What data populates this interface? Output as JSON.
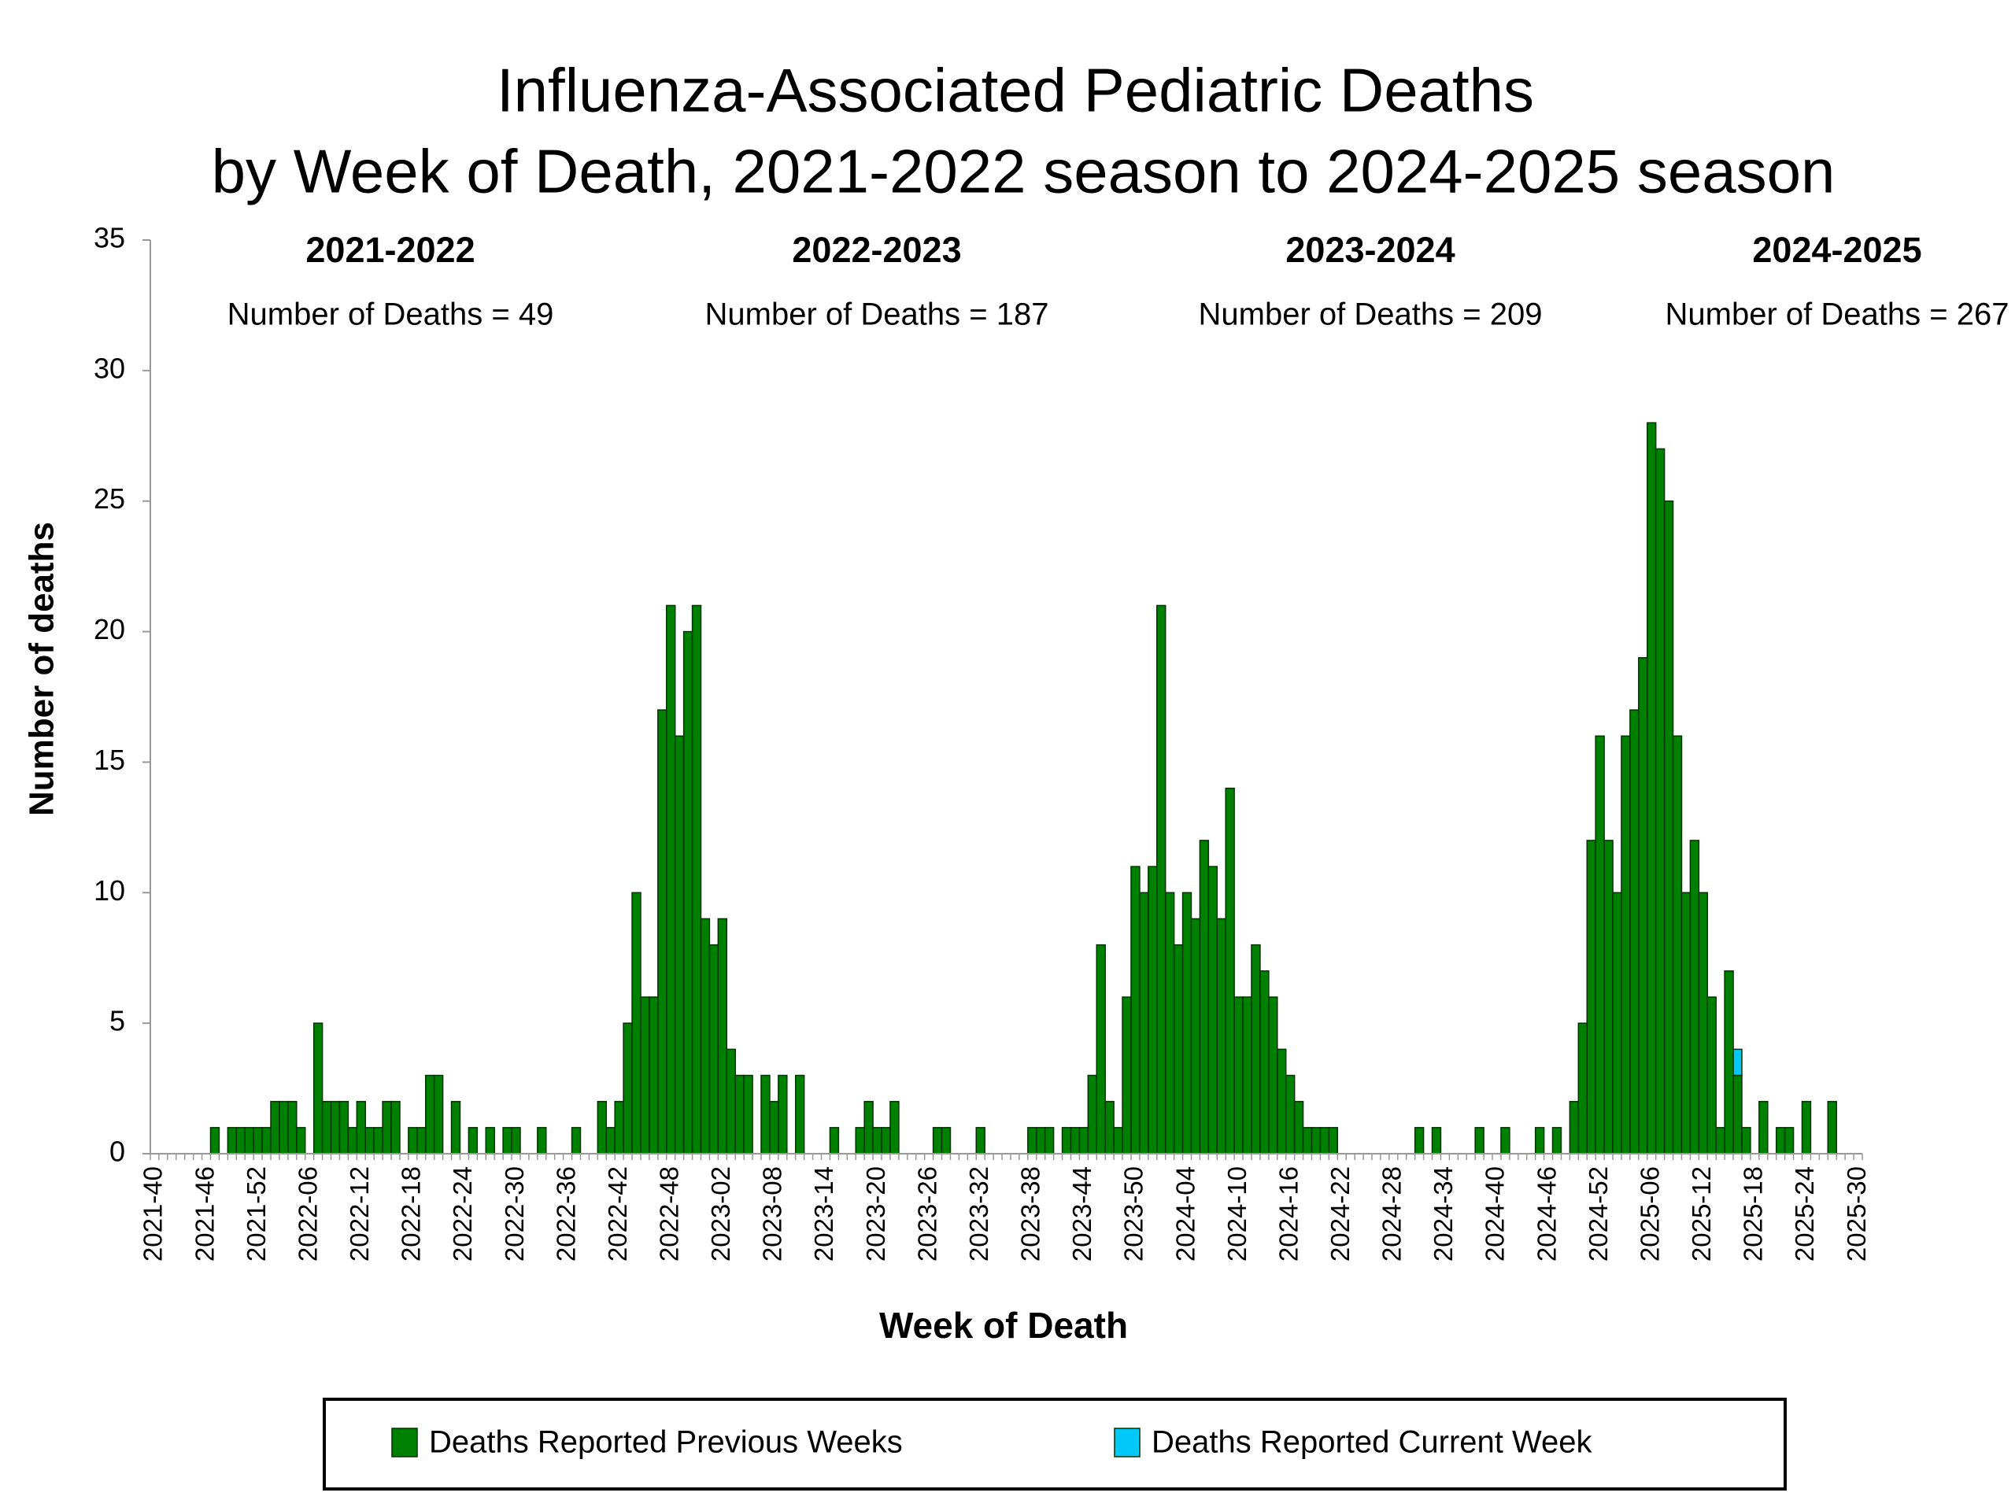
{
  "chart_data": {
    "type": "stacked-bar",
    "title": "Influenza-Associated Pediatric Deaths",
    "subtitle": "by Week of Death, 2021-2022 season to 2024-2025 season",
    "y_label": "Number of deaths",
    "x_label": "Week of Death",
    "annotations": [
      {
        "title": "2021-2022",
        "text": "Number of Deaths = 49"
      },
      {
        "title": "2022-2023",
        "text": "Number of Deaths = 187"
      },
      {
        "title": "2023-2024",
        "text": "Number of Deaths = 209"
      },
      {
        "title": "2024-2025",
        "text": "Number of Deaths = 267"
      }
    ],
    "ylim": [
      0,
      35
    ],
    "yticks": [
      0,
      5,
      10,
      15,
      20,
      25,
      30,
      35
    ],
    "grid": false,
    "legend": "bottom",
    "categories": [
      "2021-40",
      null,
      null,
      null,
      null,
      null,
      "2021-46",
      null,
      null,
      null,
      null,
      null,
      "2021-52",
      null,
      null,
      null,
      null,
      null,
      "2022-06",
      null,
      null,
      null,
      null,
      null,
      "2022-12",
      null,
      null,
      null,
      null,
      null,
      "2022-18",
      null,
      null,
      null,
      null,
      null,
      "2022-24",
      null,
      null,
      null,
      null,
      null,
      "2022-30",
      null,
      null,
      null,
      null,
      null,
      "2022-36",
      null,
      null,
      null,
      null,
      null,
      "2022-42",
      null,
      null,
      null,
      null,
      null,
      "2022-48",
      null,
      null,
      null,
      null,
      null,
      "2023-02",
      null,
      null,
      null,
      null,
      null,
      "2023-08",
      null,
      null,
      null,
      null,
      null,
      "2023-14",
      null,
      null,
      null,
      null,
      null,
      "2023-20",
      null,
      null,
      null,
      null,
      null,
      "2023-26",
      null,
      null,
      null,
      null,
      null,
      "2023-32",
      null,
      null,
      null,
      null,
      null,
      "2023-38",
      null,
      null,
      null,
      null,
      null,
      "2023-44",
      null,
      null,
      null,
      null,
      null,
      "2023-50",
      null,
      null,
      null,
      null,
      null,
      "2024-04",
      null,
      null,
      null,
      null,
      null,
      "2024-10",
      null,
      null,
      null,
      null,
      null,
      "2024-16",
      null,
      null,
      null,
      null,
      null,
      "2024-22",
      null,
      null,
      null,
      null,
      null,
      "2024-28",
      null,
      null,
      null,
      null,
      null,
      "2024-34",
      null,
      null,
      null,
      null,
      null,
      "2024-40",
      null,
      null,
      null,
      null,
      null,
      "2024-46",
      null,
      null,
      null,
      null,
      null,
      "2024-52",
      null,
      null,
      null,
      null,
      null,
      "2025-06",
      null,
      null,
      null,
      null,
      null,
      "2025-12",
      null,
      null,
      null,
      null,
      null,
      "2025-18",
      null,
      null,
      null,
      null,
      null,
      "2025-24",
      null,
      null,
      null,
      null,
      null,
      "2025-30"
    ],
    "series": [
      {
        "name": "Deaths Reported Previous Weeks",
        "color": "#008000",
        "values": [
          0,
          0,
          0,
          0,
          0,
          0,
          0,
          1,
          0,
          1,
          1,
          1,
          1,
          1,
          2,
          2,
          2,
          1,
          0,
          5,
          2,
          2,
          2,
          1,
          2,
          1,
          1,
          2,
          2,
          0,
          1,
          1,
          3,
          3,
          0,
          2,
          0,
          1,
          0,
          1,
          0,
          1,
          1,
          0,
          0,
          1,
          0,
          0,
          0,
          1,
          0,
          0,
          2,
          1,
          2,
          5,
          10,
          6,
          6,
          17,
          21,
          16,
          20,
          21,
          9,
          8,
          9,
          4,
          3,
          3,
          0,
          3,
          2,
          3,
          0,
          3,
          0,
          0,
          0,
          1,
          0,
          0,
          1,
          2,
          1,
          1,
          2,
          0,
          0,
          0,
          0,
          1,
          1,
          0,
          0,
          0,
          1,
          0,
          0,
          0,
          0,
          0,
          1,
          1,
          1,
          0,
          1,
          1,
          1,
          3,
          8,
          2,
          1,
          6,
          11,
          10,
          11,
          21,
          10,
          8,
          10,
          9,
          12,
          11,
          9,
          14,
          6,
          6,
          8,
          7,
          6,
          4,
          3,
          2,
          1,
          1,
          1,
          1,
          0,
          0,
          0,
          0,
          0,
          0,
          0,
          0,
          0,
          1,
          0,
          1,
          0,
          0,
          0,
          0,
          1,
          0,
          0,
          1,
          0,
          0,
          0,
          1,
          0,
          1,
          0,
          2,
          5,
          12,
          16,
          12,
          10,
          16,
          17,
          19,
          28,
          27,
          25,
          16,
          10,
          12,
          10,
          6,
          1,
          7,
          3,
          1,
          0,
          2,
          0,
          1,
          1,
          0,
          2,
          0,
          0,
          2,
          0,
          0,
          0
        ]
      },
      {
        "name": "Deaths Reported Current Week",
        "color": "#00c8f8",
        "values": [
          0,
          0,
          0,
          0,
          0,
          0,
          0,
          0,
          0,
          0,
          0,
          0,
          0,
          0,
          0,
          0,
          0,
          0,
          0,
          0,
          0,
          0,
          0,
          0,
          0,
          0,
          0,
          0,
          0,
          0,
          0,
          0,
          0,
          0,
          0,
          0,
          0,
          0,
          0,
          0,
          0,
          0,
          0,
          0,
          0,
          0,
          0,
          0,
          0,
          0,
          0,
          0,
          0,
          0,
          0,
          0,
          0,
          0,
          0,
          0,
          0,
          0,
          0,
          0,
          0,
          0,
          0,
          0,
          0,
          0,
          0,
          0,
          0,
          0,
          0,
          0,
          0,
          0,
          0,
          0,
          0,
          0,
          0,
          0,
          0,
          0,
          0,
          0,
          0,
          0,
          0,
          0,
          0,
          0,
          0,
          0,
          0,
          0,
          0,
          0,
          0,
          0,
          0,
          0,
          0,
          0,
          0,
          0,
          0,
          0,
          0,
          0,
          0,
          0,
          0,
          0,
          0,
          0,
          0,
          0,
          0,
          0,
          0,
          0,
          0,
          0,
          0,
          0,
          0,
          0,
          0,
          0,
          0,
          0,
          0,
          0,
          0,
          0,
          0,
          0,
          0,
          0,
          0,
          0,
          0,
          0,
          0,
          0,
          0,
          0,
          0,
          0,
          0,
          0,
          0,
          0,
          0,
          0,
          0,
          0,
          0,
          0,
          0,
          0,
          0,
          0,
          0,
          0,
          0,
          0,
          0,
          0,
          0,
          0,
          0,
          0,
          0,
          0,
          0,
          0,
          0,
          0,
          0,
          0,
          1,
          0,
          0,
          0,
          0,
          0,
          0,
          0,
          0,
          0,
          0,
          0,
          0,
          0,
          0
        ]
      }
    ]
  }
}
